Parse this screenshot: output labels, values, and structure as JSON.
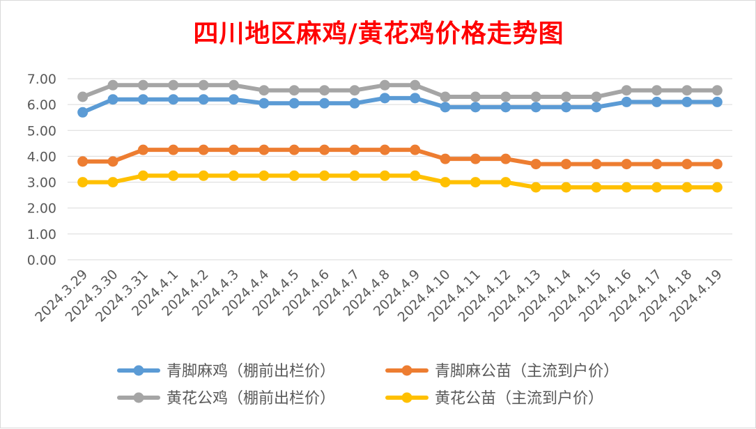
{
  "chart_data": {
    "type": "line",
    "title": "四川地区麻鸡/黄花鸡价格走势图",
    "xlabel": "",
    "ylabel": "",
    "ylim": [
      0,
      7
    ],
    "yticks": [
      "0.00",
      "1.00",
      "2.00",
      "3.00",
      "4.00",
      "5.00",
      "6.00",
      "7.00"
    ],
    "grid": true,
    "legend_position": "bottom",
    "categories": [
      "2024.3.29",
      "2024.3.30",
      "2024.3.31",
      "2024.4.1",
      "2024.4.2",
      "2024.4.3",
      "2024.4.4",
      "2024.4.5",
      "2024.4.6",
      "2024.4.7",
      "2024.4.8",
      "2024.4.9",
      "2024.4.10",
      "2024.4.11",
      "2024.4.12",
      "2024.4.13",
      "2024.4.14",
      "2024.4.15",
      "2024.4.16",
      "2024.4.17",
      "2024.4.18",
      "2024.4.19"
    ],
    "series": [
      {
        "name": "青脚麻鸡（棚前出栏价）",
        "color": "#5b9bd5",
        "values": [
          5.7,
          6.2,
          6.2,
          6.2,
          6.2,
          6.2,
          6.05,
          6.05,
          6.05,
          6.05,
          6.25,
          6.25,
          5.9,
          5.9,
          5.9,
          5.9,
          5.9,
          5.9,
          6.1,
          6.1,
          6.1,
          6.1
        ]
      },
      {
        "name": "青脚麻公苗（主流到户价）",
        "color": "#ed7d31",
        "values": [
          3.8,
          3.8,
          4.25,
          4.25,
          4.25,
          4.25,
          4.25,
          4.25,
          4.25,
          4.25,
          4.25,
          4.25,
          3.9,
          3.9,
          3.9,
          3.7,
          3.7,
          3.7,
          3.7,
          3.7,
          3.7,
          3.7
        ]
      },
      {
        "name": "黄花公鸡（棚前出栏价）",
        "color": "#a5a5a5",
        "values": [
          6.3,
          6.75,
          6.75,
          6.75,
          6.75,
          6.75,
          6.55,
          6.55,
          6.55,
          6.55,
          6.75,
          6.75,
          6.3,
          6.3,
          6.3,
          6.3,
          6.3,
          6.3,
          6.55,
          6.55,
          6.55,
          6.55
        ]
      },
      {
        "name": "黄花公苗（主流到户价）",
        "color": "#ffc000",
        "values": [
          3.0,
          3.0,
          3.25,
          3.25,
          3.25,
          3.25,
          3.25,
          3.25,
          3.25,
          3.25,
          3.25,
          3.25,
          3.0,
          3.0,
          3.0,
          2.8,
          2.8,
          2.8,
          2.8,
          2.8,
          2.8,
          2.8
        ]
      }
    ]
  }
}
